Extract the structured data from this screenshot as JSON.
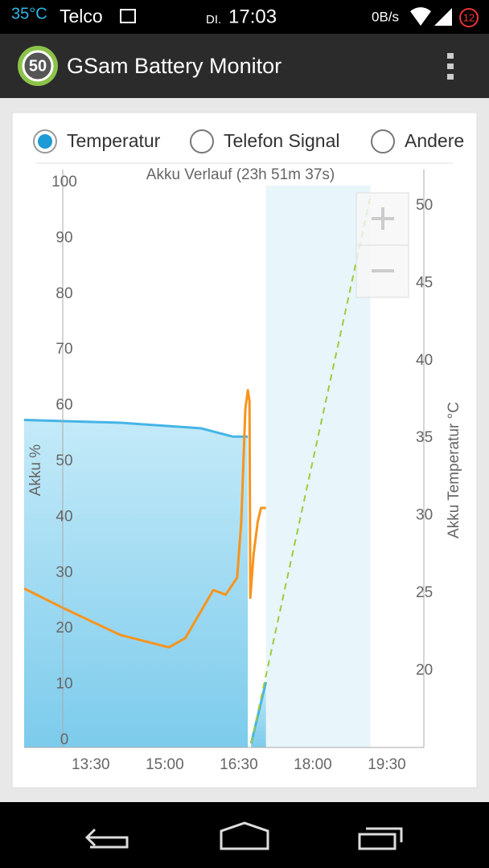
{
  "status_bar": {
    "temperature": "35°C",
    "carrier": "Telco",
    "day": "DI.",
    "time": "17:03",
    "network_speed": "0B/s",
    "notification_count": "12"
  },
  "app_bar": {
    "icon_text": "50",
    "title": "GSam Battery Monitor"
  },
  "tabs": {
    "options": [
      "Temperatur",
      "Telefon Signal",
      "Andere"
    ],
    "selected": 0
  },
  "chart_data": {
    "type": "line",
    "title": "Akku Verlauf (23h 51m 37s)",
    "ylabel": "Akku %",
    "y2label": "Akku Temperatur °C",
    "xlim": [
      729,
      1215
    ],
    "xticks": [
      {
        "value": 810,
        "label": "13:30"
      },
      {
        "value": 900,
        "label": "15:00"
      },
      {
        "value": 990,
        "label": "16:30"
      },
      {
        "value": 1080,
        "label": "18:00"
      },
      {
        "value": 1170,
        "label": "19:30"
      }
    ],
    "ylim": [
      0,
      100
    ],
    "yticks": [
      0,
      10,
      20,
      30,
      40,
      50,
      60,
      70,
      80,
      90,
      100
    ],
    "y2lim": [
      15.3,
      51.3
    ],
    "y2ticks": [
      20,
      25,
      30,
      35,
      40,
      45,
      50
    ],
    "series": [
      {
        "color": "#45b4e6",
        "fill": true,
        "x": [
          729,
          846,
          944,
          983,
          1001
        ],
        "values": [
          58,
          57.5,
          56.5,
          55,
          55
        ]
      },
      {
        "color": "#45b4e6",
        "fill": true,
        "x": [
          1005,
          1023
        ],
        "values": [
          0,
          11
        ]
      },
      {
        "color": "#9ccc3c",
        "dashed": true,
        "band_color": "#e8f5fb",
        "x": [
          1005,
          1150
        ],
        "values": [
          0,
          98
        ]
      },
      {
        "color": "#f7941d",
        "axis": "y2",
        "x": [
          729,
          778,
          846,
          905,
          925,
          959,
          974,
          988,
          993,
          998,
          1001,
          1003,
          1004,
          1008,
          1013,
          1017,
          1023
        ],
        "values": [
          25.3,
          24.0,
          22.3,
          21.5,
          22.1,
          25.2,
          24.9,
          26.0,
          29.6,
          36.9,
          38.1,
          37.4,
          24.7,
          27.5,
          29.6,
          30.5,
          30.5
        ]
      }
    ]
  }
}
